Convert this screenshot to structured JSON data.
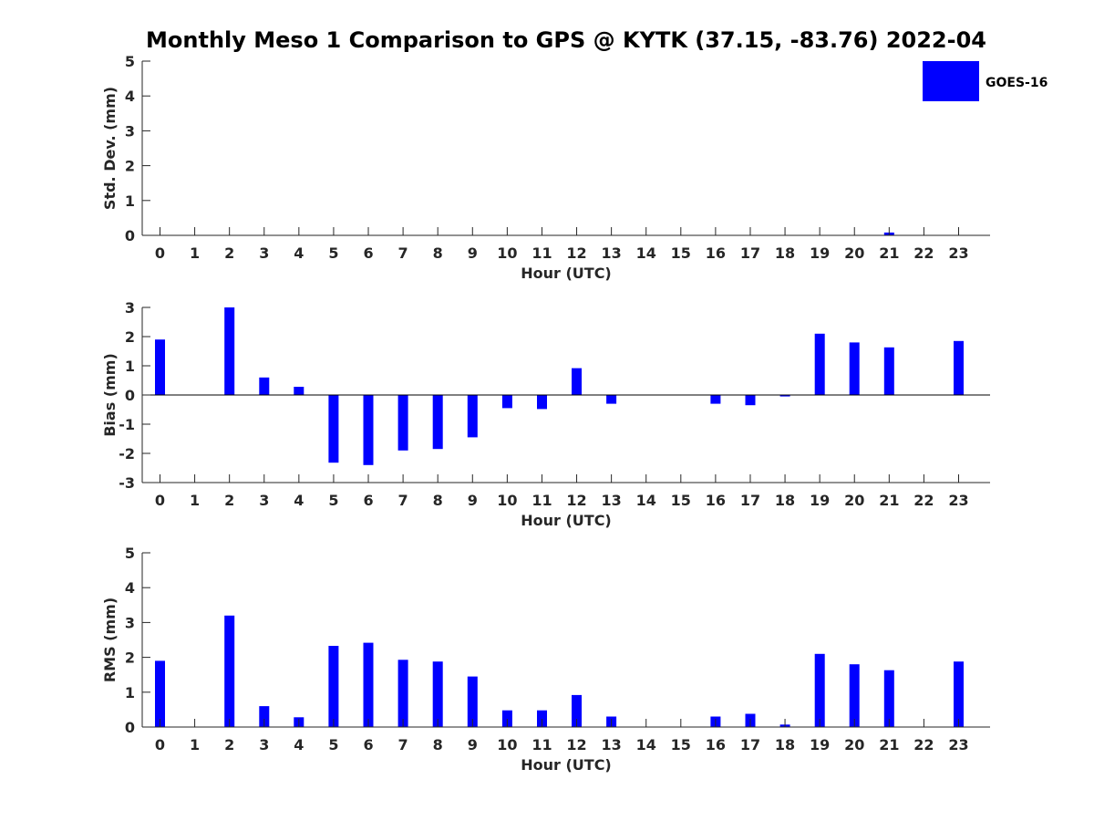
{
  "title": "Monthly Meso 1 Comparison to GPS @ KYTK (37.15, -83.76) 2022-04",
  "legend": {
    "label": "GOES-16",
    "color": "#0000ff",
    "placement": "top-right"
  },
  "colors": {
    "bar": "#0000ff",
    "axis": "#262626",
    "background": "#ffffff"
  },
  "chart_data": [
    {
      "type": "bar",
      "ylabel": "Std. Dev. (mm)",
      "xlabel": "Hour (UTC)",
      "ylim": [
        0,
        5
      ],
      "yticks": [
        0,
        1,
        2,
        3,
        4,
        5
      ],
      "categories": [
        "0",
        "1",
        "2",
        "3",
        "4",
        "5",
        "6",
        "7",
        "8",
        "9",
        "10",
        "11",
        "12",
        "13",
        "14",
        "15",
        "16",
        "17",
        "18",
        "19",
        "20",
        "21",
        "22",
        "23"
      ],
      "series": [
        {
          "name": "GOES-16",
          "values": [
            0,
            null,
            0,
            0,
            0,
            0,
            0,
            0,
            0,
            0,
            0,
            0,
            0,
            0,
            null,
            null,
            0,
            0,
            0,
            0,
            0,
            0.08,
            null,
            0
          ]
        }
      ],
      "grid": false
    },
    {
      "type": "bar",
      "ylabel": "Bias (mm)",
      "xlabel": "Hour (UTC)",
      "ylim": [
        -3,
        3
      ],
      "yticks": [
        -3,
        -2,
        -1,
        0,
        1,
        2,
        3
      ],
      "zero_line": true,
      "categories": [
        "0",
        "1",
        "2",
        "3",
        "4",
        "5",
        "6",
        "7",
        "8",
        "9",
        "10",
        "11",
        "12",
        "13",
        "14",
        "15",
        "16",
        "17",
        "18",
        "19",
        "20",
        "21",
        "22",
        "23"
      ],
      "series": [
        {
          "name": "GOES-16",
          "values": [
            1.9,
            null,
            3.0,
            0.6,
            0.28,
            -2.32,
            -2.4,
            -1.9,
            -1.85,
            -1.45,
            -0.45,
            -0.48,
            0.92,
            -0.3,
            null,
            null,
            -0.3,
            -0.35,
            -0.05,
            2.1,
            1.8,
            1.63,
            null,
            1.85
          ]
        }
      ],
      "grid": false
    },
    {
      "type": "bar",
      "ylabel": "RMS (mm)",
      "xlabel": "Hour (UTC)",
      "ylim": [
        0,
        5
      ],
      "yticks": [
        0,
        1,
        2,
        3,
        4,
        5
      ],
      "categories": [
        "0",
        "1",
        "2",
        "3",
        "4",
        "5",
        "6",
        "7",
        "8",
        "9",
        "10",
        "11",
        "12",
        "13",
        "14",
        "15",
        "16",
        "17",
        "18",
        "19",
        "20",
        "21",
        "22",
        "23"
      ],
      "series": [
        {
          "name": "GOES-16",
          "values": [
            1.9,
            null,
            3.2,
            0.6,
            0.28,
            2.33,
            2.42,
            1.93,
            1.88,
            1.45,
            0.48,
            0.48,
            0.92,
            0.3,
            null,
            null,
            0.3,
            0.38,
            0.07,
            2.1,
            1.8,
            1.63,
            null,
            1.88
          ]
        }
      ],
      "grid": false
    }
  ]
}
